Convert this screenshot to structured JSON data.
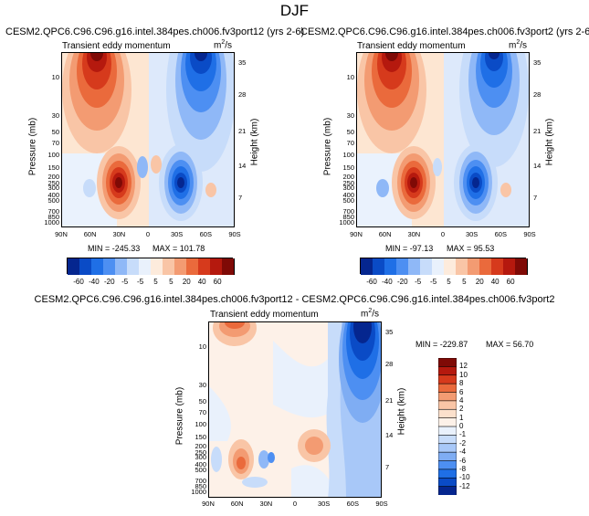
{
  "figure": {
    "title": "DJF"
  },
  "panels": [
    {
      "id": "p1",
      "title": "CESM2.QPC6.C96.C96.g16.intel.384pes.ch006.fv3port12 (yrs 2-6)",
      "subtitle": "Transient eddy momentum",
      "units": "m",
      "units_exp": "2",
      "units_den": "/s",
      "min_label": "MIN = -245.33",
      "max_label": "MAX = 101.78"
    },
    {
      "id": "p2",
      "title": "CESM2.QPC6.C96.C96.g16.intel.384pes.ch006.fv3port2 (yrs 2-6)",
      "subtitle": "Transient eddy momentum",
      "units": "m",
      "units_exp": "2",
      "units_den": "/s",
      "min_label": "MIN = -97.13",
      "max_label": "MAX =  95.53"
    },
    {
      "id": "p3",
      "title": "CESM2.QPC6.C96.C96.g16.intel.384pes.ch006.fv3port12 - CESM2.QPC6.C96.C96.g16.intel.384pes.ch006.fv3port2",
      "subtitle": "Transient eddy momentum",
      "units": "m",
      "units_exp": "2",
      "units_den": "/s",
      "min_label": "MIN = -229.87",
      "max_label": "MAX =  56.70"
    }
  ],
  "axes": {
    "x_ticks": [
      "90N",
      "60N",
      "30N",
      "0",
      "30S",
      "60S",
      "90S"
    ],
    "p_ticks": [
      "10",
      "30",
      "50",
      "70",
      "100",
      "150",
      "200",
      "250",
      "300",
      "400",
      "500",
      "700",
      "850",
      "1000"
    ],
    "h_ticks": [
      "35",
      "28",
      "21",
      "14",
      "7"
    ],
    "ylabel": "Pressure (mb)",
    "ylabel_right": "Height (km)"
  },
  "colorbars": {
    "top_labels": [
      "-60",
      "-40",
      "-20",
      "-5",
      "-5",
      "5",
      "5",
      "20",
      "40",
      "60"
    ],
    "top_colors": [
      "#05268f",
      "#0a4bc6",
      "#1f6fe6",
      "#4d8ff2",
      "#8fb8f7",
      "#c7dcfa",
      "#e9f1fc",
      "#fdebdc",
      "#f9c5a6",
      "#f39b72",
      "#ea6a3c",
      "#d63a1c",
      "#b5190e",
      "#7f0a06"
    ],
    "diff_labels": [
      "12",
      "10",
      "8",
      "6",
      "4",
      "2",
      "1",
      "0",
      "-1",
      "-2",
      "-4",
      "-6",
      "-8",
      "-10",
      "-12"
    ],
    "diff_colors": [
      "#7f0a06",
      "#b5190e",
      "#d63a1c",
      "#ea6a3c",
      "#f39b72",
      "#f9c5a6",
      "#fbe0cc",
      "#fdf1e8",
      "#e9f1fc",
      "#c7dcfa",
      "#a8c8f8",
      "#7fadf3",
      "#4d8ff2",
      "#1f6fe6",
      "#0a4bc6",
      "#05268f"
    ]
  },
  "chart_data": [
    {
      "type": "heatmap",
      "panel": "p1",
      "title": "CESM2.QPC6.C96.C96.g16.intel.384pes.ch006.fv3port12 (yrs 2-6)",
      "variable": "Transient eddy momentum",
      "units": "m^2/s^2",
      "x_categories": [
        "90N",
        "60N",
        "30N",
        "0",
        "30S",
        "60S",
        "90S"
      ],
      "y_pressure_mb": [
        10,
        30,
        50,
        70,
        100,
        150,
        200,
        250,
        300,
        400,
        500,
        700,
        850,
        1000
      ],
      "y_height_km": [
        35,
        28,
        21,
        14,
        7
      ],
      "min": -245.33,
      "max": 101.78,
      "contour_levels": [
        -60,
        -40,
        -20,
        -5,
        -5,
        5,
        5,
        20,
        40,
        60
      ]
    },
    {
      "type": "heatmap",
      "panel": "p2",
      "title": "CESM2.QPC6.C96.C96.g16.intel.384pes.ch006.fv3port2 (yrs 2-6)",
      "variable": "Transient eddy momentum",
      "units": "m^2/s^2",
      "x_categories": [
        "90N",
        "60N",
        "30N",
        "0",
        "30S",
        "60S",
        "90S"
      ],
      "y_pressure_mb": [
        10,
        30,
        50,
        70,
        100,
        150,
        200,
        250,
        300,
        400,
        500,
        700,
        850,
        1000
      ],
      "y_height_km": [
        35,
        28,
        21,
        14,
        7
      ],
      "min": -97.13,
      "max": 95.53,
      "contour_levels": [
        -60,
        -40,
        -20,
        -5,
        -5,
        5,
        5,
        20,
        40,
        60
      ]
    },
    {
      "type": "heatmap",
      "panel": "p3",
      "title": "CESM2.QPC6.C96.C96.g16.intel.384pes.ch006.fv3port12 - CESM2.QPC6.C96.C96.g16.intel.384pes.ch006.fv3port2",
      "variable": "Transient eddy momentum",
      "units": "m^2/s^2",
      "x_categories": [
        "90N",
        "60N",
        "30N",
        "0",
        "30S",
        "60S",
        "90S"
      ],
      "y_pressure_mb": [
        10,
        30,
        50,
        70,
        100,
        150,
        200,
        250,
        300,
        400,
        500,
        700,
        850,
        1000
      ],
      "y_height_km": [
        35,
        28,
        21,
        14,
        7
      ],
      "min": -229.87,
      "max": 56.7,
      "contour_levels": [
        12,
        10,
        8,
        6,
        4,
        2,
        1,
        0,
        -1,
        -2,
        -4,
        -6,
        -8,
        -10,
        -12
      ]
    }
  ]
}
